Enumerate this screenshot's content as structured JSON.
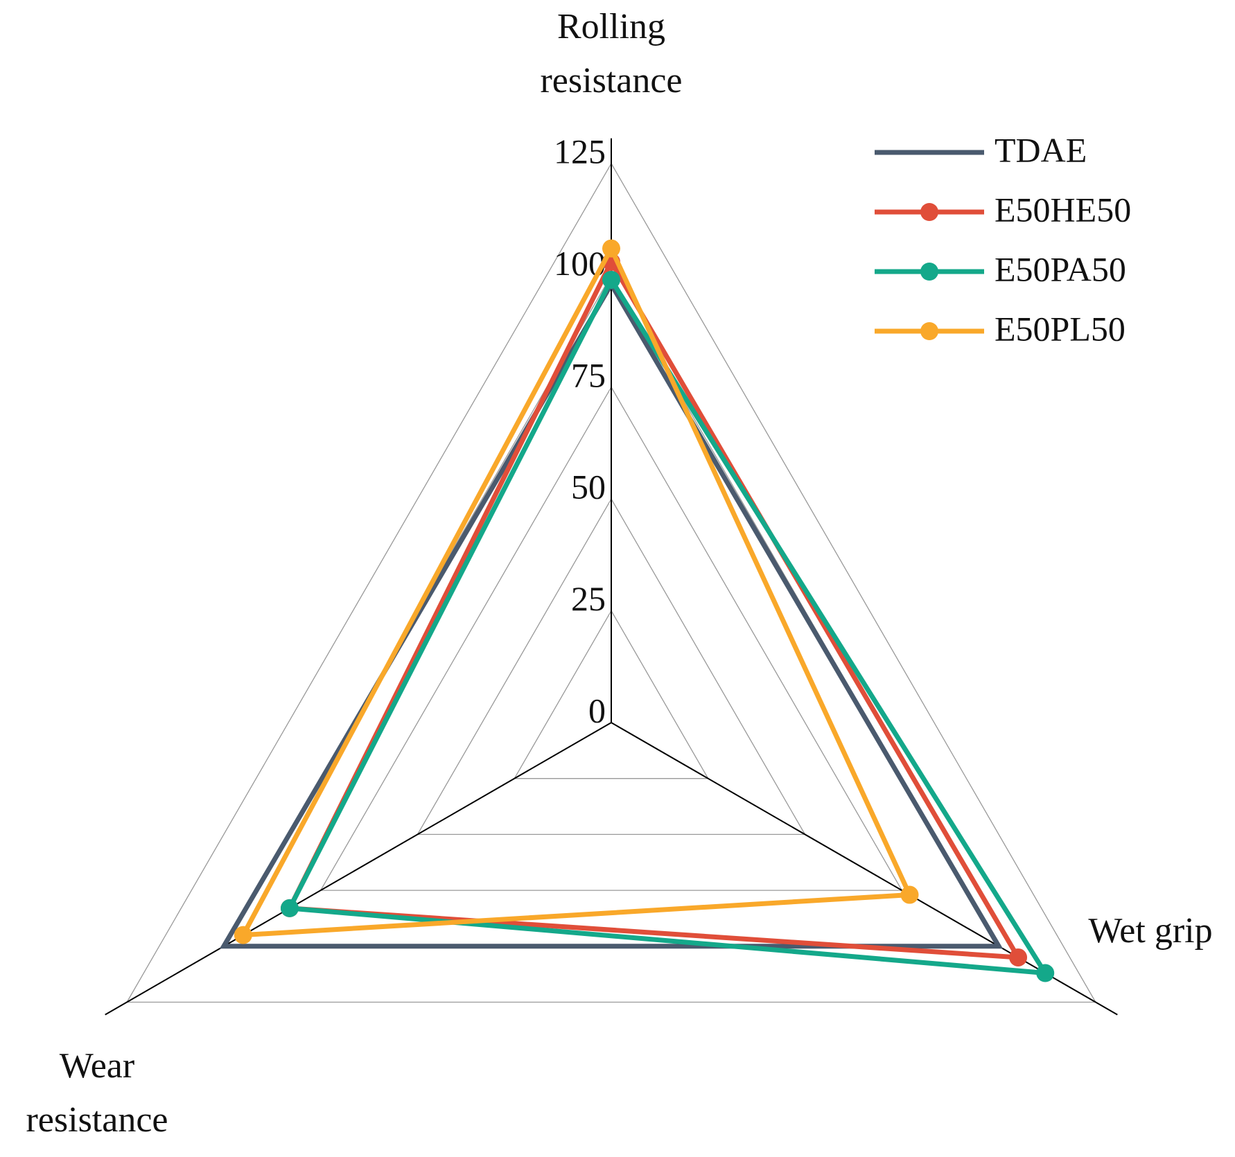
{
  "chart_data": {
    "type": "radar",
    "categories": [
      "Rolling resistance",
      "Wet grip",
      "Wear resistance"
    ],
    "rlim": [
      0,
      125
    ],
    "rticks": [
      0,
      25,
      50,
      75,
      100,
      125
    ],
    "grid": true,
    "legend": "top-right",
    "series": [
      {
        "name": "TDAE",
        "color": "#4a5a6e",
        "marker": false,
        "values": [
          98,
          100,
          100
        ]
      },
      {
        "name": "E50HE50",
        "color": "#e04e39",
        "marker": true,
        "values": [
          103,
          105,
          83
        ]
      },
      {
        "name": "E50PA50",
        "color": "#14a88a",
        "marker": true,
        "values": [
          99,
          112,
          83
        ]
      },
      {
        "name": "E50PL50",
        "color": "#f9a82a",
        "marker": true,
        "values": [
          106,
          77,
          95
        ]
      }
    ]
  }
}
